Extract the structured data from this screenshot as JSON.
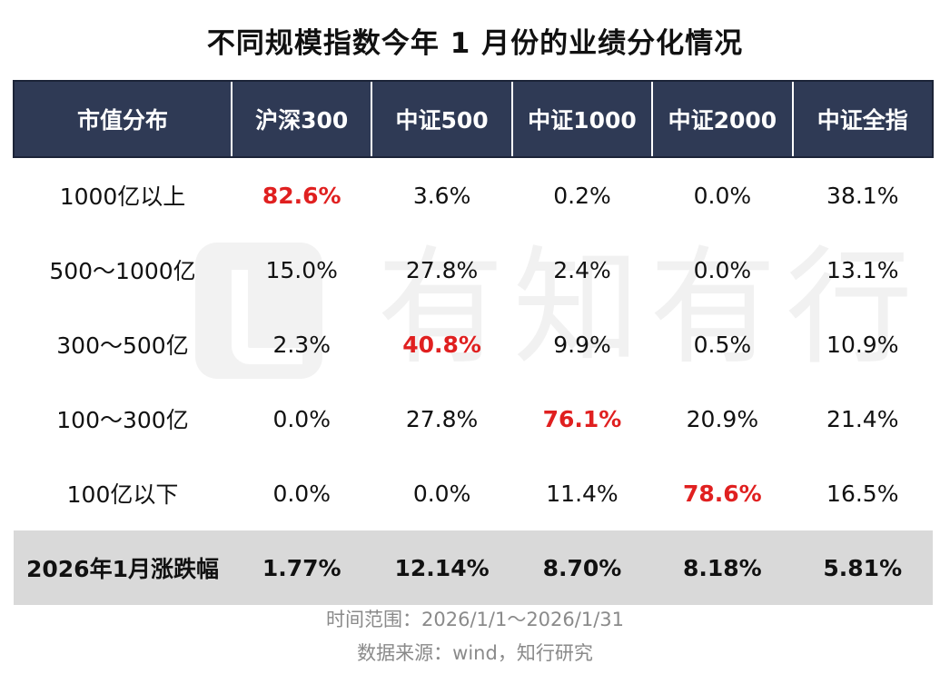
{
  "title": "不同规模指数今年 1 月份的业绩分化情况",
  "watermark": "有知有行",
  "colors": {
    "header_bg": "#2f3a55",
    "highlight": "#e02020",
    "total_row_bg": "#d9d9d9"
  },
  "chart_data": {
    "type": "table",
    "columns": [
      "市值分布",
      "沪深300",
      "中证500",
      "中证1000",
      "中证2000",
      "中证全指"
    ],
    "rows": [
      {
        "label": "1000亿以上",
        "values": [
          "82.6%",
          "3.6%",
          "0.2%",
          "0.0%",
          "38.1%"
        ],
        "highlight": 0
      },
      {
        "label": "500～1000亿",
        "values": [
          "15.0%",
          "27.8%",
          "2.4%",
          "0.0%",
          "13.1%"
        ],
        "highlight": -1
      },
      {
        "label": "300～500亿",
        "values": [
          "2.3%",
          "40.8%",
          "9.9%",
          "0.5%",
          "10.9%"
        ],
        "highlight": 1
      },
      {
        "label": "100～300亿",
        "values": [
          "0.0%",
          "27.8%",
          "76.1%",
          "20.9%",
          "21.4%"
        ],
        "highlight": 2
      },
      {
        "label": "100亿以下",
        "values": [
          "0.0%",
          "0.0%",
          "11.4%",
          "78.6%",
          "16.5%"
        ],
        "highlight": 3
      }
    ],
    "total_row": {
      "label": "2026年1月涨跌幅",
      "values": [
        "1.77%",
        "12.14%",
        "8.70%",
        "8.18%",
        "5.81%"
      ]
    }
  },
  "footer": {
    "time_range": "时间范围：2026/1/1～2026/1/31",
    "source": "数据来源：wind，知行研究"
  }
}
